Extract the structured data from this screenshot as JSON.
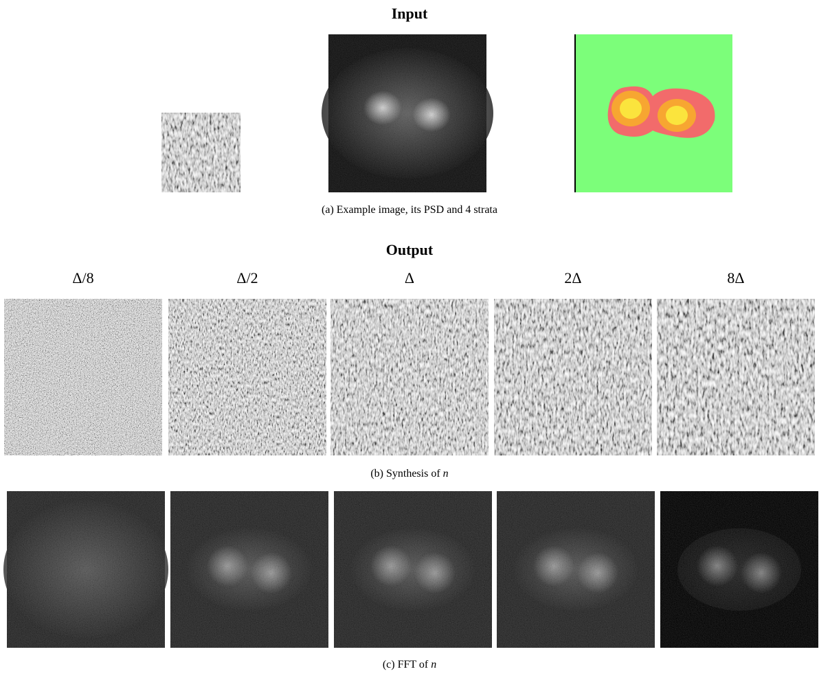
{
  "input": {
    "title": "Input",
    "caption": {
      "label": "(a)",
      "text": "Example image, its PSD and 4 strata"
    }
  },
  "output": {
    "title": "Output",
    "columns": [
      "Δ/8",
      "Δ/2",
      "Δ",
      "2Δ",
      "8Δ"
    ],
    "synthesis_caption": {
      "label": "(b)",
      "text": "Synthesis of",
      "var": "n"
    },
    "fft_caption": {
      "label": "(c)",
      "text": "FFT of",
      "var": "n"
    }
  }
}
